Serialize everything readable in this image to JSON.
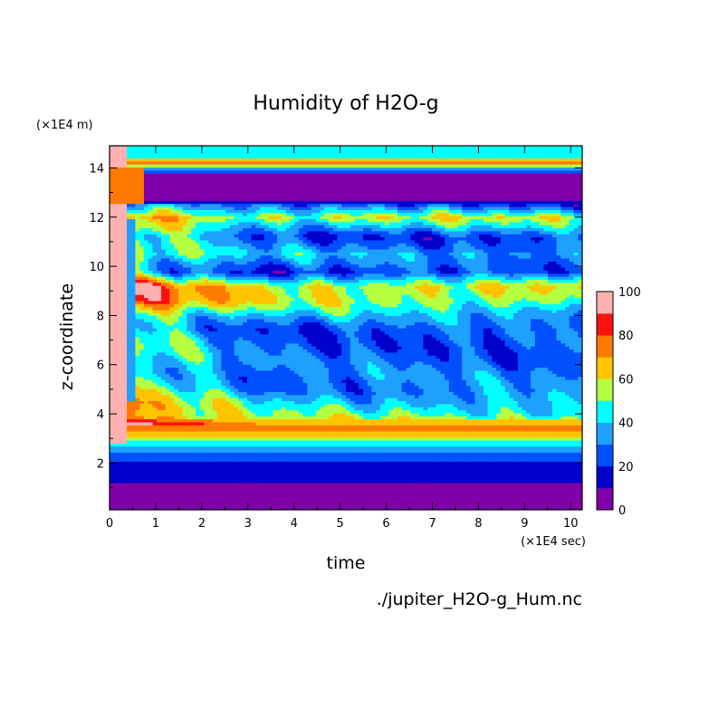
{
  "chart_data": {
    "type": "heatmap",
    "title": "Humidity of H2O-g",
    "xlabel": "time",
    "ylabel": "z-coordinate",
    "x_unit": "(×1E4 sec)",
    "y_unit": "(×1E4 m)",
    "source": "./jupiter_H2O-g_Hum.nc",
    "xlim": [
      0,
      10.25
    ],
    "ylim": [
      0.1,
      14.9
    ],
    "x_ticks": [
      0,
      1,
      2,
      3,
      4,
      5,
      6,
      7,
      8,
      9,
      10
    ],
    "y_ticks": [
      2,
      4,
      6,
      8,
      10,
      12,
      14
    ],
    "colorbar": {
      "levels": [
        0,
        10,
        20,
        30,
        40,
        50,
        60,
        70,
        80,
        90,
        100
      ],
      "tick_labels": [
        0,
        20,
        40,
        60,
        80,
        100
      ],
      "colors": [
        "#7f00a8",
        "#0000cc",
        "#0050ff",
        "#1ea0ff",
        "#00ffff",
        "#b4ff40",
        "#ffc400",
        "#ff7a00",
        "#ff1010",
        "#ffb0b0"
      ]
    },
    "z_profile_late_time": [
      {
        "z": 0.5,
        "hum": 5
      },
      {
        "z": 1.0,
        "hum": 5
      },
      {
        "z": 1.3,
        "hum": 15
      },
      {
        "z": 2.0,
        "hum": 18
      },
      {
        "z": 2.5,
        "hum": 30
      },
      {
        "z": 2.85,
        "hum": 45
      },
      {
        "z": 3.1,
        "hum": 65
      },
      {
        "z": 3.5,
        "hum": 78
      },
      {
        "z": 3.9,
        "hum": 50
      },
      {
        "z": 5.0,
        "hum": 32
      },
      {
        "z": 6.5,
        "hum": 26
      },
      {
        "z": 7.5,
        "hum": 25
      },
      {
        "z": 8.0,
        "hum": 35
      },
      {
        "z": 8.6,
        "hum": 55
      },
      {
        "z": 9.2,
        "hum": 60
      },
      {
        "z": 9.8,
        "hum": 20
      },
      {
        "z": 10.5,
        "hum": 35
      },
      {
        "z": 11.2,
        "hum": 22
      },
      {
        "z": 12.0,
        "hum": 55
      },
      {
        "z": 12.4,
        "hum": 30
      },
      {
        "z": 12.8,
        "hum": 5
      },
      {
        "z": 13.7,
        "hum": 5
      },
      {
        "z": 13.9,
        "hum": 25
      },
      {
        "z": 14.2,
        "hum": 75
      },
      {
        "z": 14.5,
        "hum": 45
      },
      {
        "z": 14.9,
        "hum": 40
      }
    ]
  }
}
